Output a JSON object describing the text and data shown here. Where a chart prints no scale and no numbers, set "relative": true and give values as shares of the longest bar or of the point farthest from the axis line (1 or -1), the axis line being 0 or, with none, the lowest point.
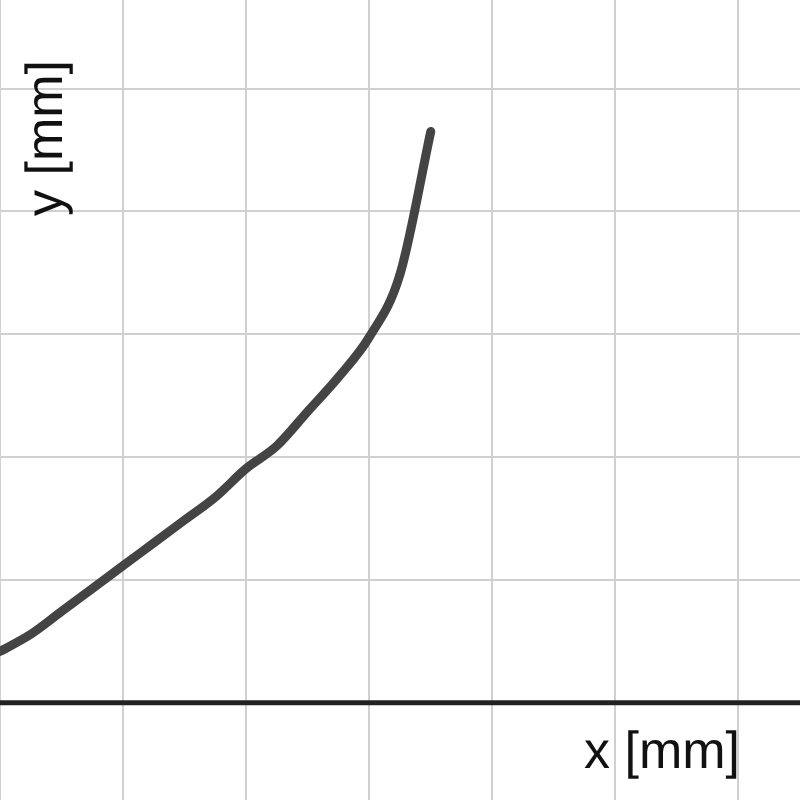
{
  "chart_data": {
    "type": "line",
    "relative": true,
    "xlabel": "x [mm]",
    "ylabel": "y [mm]",
    "grid": true,
    "marker": "none",
    "line_style": "solid",
    "categories": [
      null,
      null,
      null,
      null,
      null,
      null,
      null,
      null,
      null,
      null,
      null,
      null,
      null,
      null,
      null,
      null,
      null,
      null,
      null,
      null,
      null,
      null,
      null,
      null,
      null,
      null,
      null
    ],
    "series": [
      {
        "color": "#444444",
        "values": [
          0.09,
          0.12,
          0.16,
          0.2,
          0.24,
          0.28,
          0.32,
          0.36,
          0.41,
          0.45,
          0.51,
          0.57,
          0.64,
          0.75,
          1,
          null,
          null,
          null,
          null,
          null,
          null,
          null,
          null,
          null,
          null,
          null,
          null
        ]
      }
    ]
  }
}
